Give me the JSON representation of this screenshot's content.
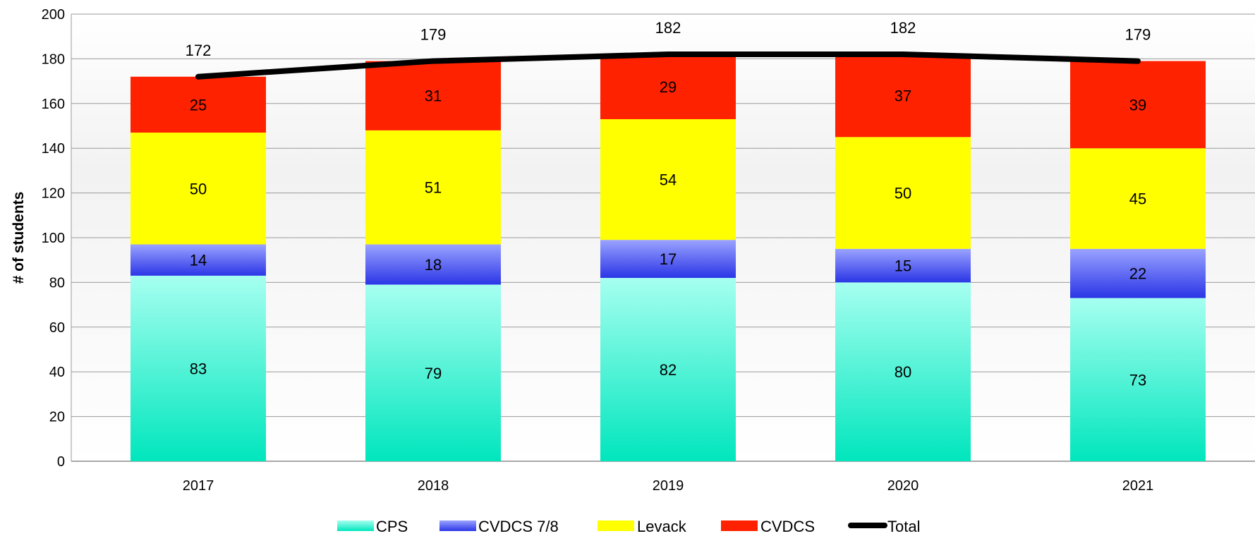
{
  "chart_data": {
    "type": "bar",
    "stacked": true,
    "title": "",
    "xlabel": "",
    "ylabel": "# of students",
    "ylim": [
      0,
      200
    ],
    "yticks": [
      0,
      20,
      40,
      60,
      80,
      100,
      120,
      140,
      160,
      180,
      200
    ],
    "grid": true,
    "legend_position": "bottom",
    "categories": [
      "2017",
      "2018",
      "2019",
      "2020",
      "2021"
    ],
    "series": [
      {
        "name": "CPS",
        "values": [
          83,
          79,
          82,
          80,
          73
        ],
        "color": "#00e6bd",
        "color_light": "#a6fff0"
      },
      {
        "name": "CVDCS 7/8",
        "values": [
          14,
          18,
          17,
          15,
          22
        ],
        "color": "#2b35e6",
        "color_light": "#9aa3ff"
      },
      {
        "name": "Levack",
        "values": [
          50,
          51,
          54,
          50,
          45
        ],
        "color": "#ffff00"
      },
      {
        "name": "CVDCS",
        "values": [
          25,
          31,
          29,
          37,
          39
        ],
        "color": "#ff2200"
      }
    ],
    "line_series": {
      "name": "Total",
      "values": [
        172,
        179,
        182,
        182,
        179
      ],
      "color": "#000000"
    }
  }
}
